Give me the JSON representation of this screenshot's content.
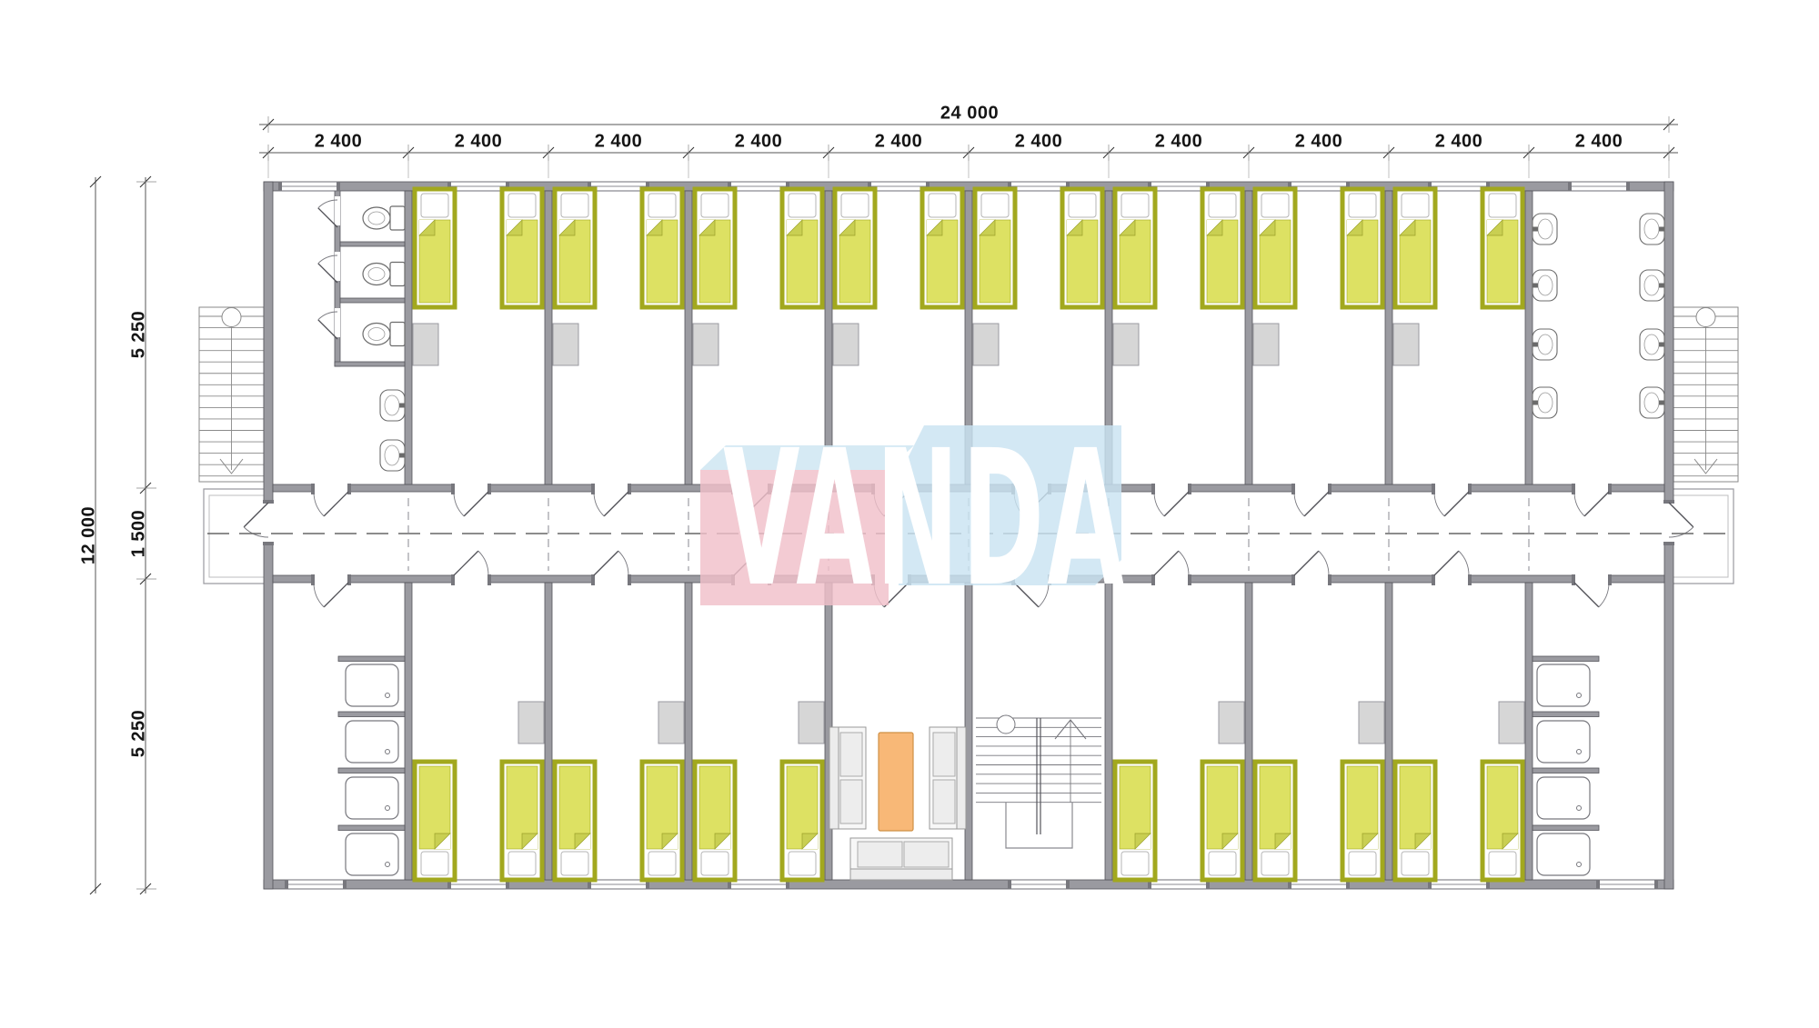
{
  "watermark": {
    "text": "VANDA"
  },
  "dimensions": {
    "top_total": "24 000",
    "top_segments": [
      "2 400",
      "2 400",
      "2 400",
      "2 400",
      "2 400",
      "2 400",
      "2 400",
      "2 400",
      "2 400",
      "2 400"
    ],
    "left_total": "12 000",
    "left_segments": [
      "5 250",
      "1 500",
      "5 250"
    ]
  },
  "plan": {
    "top_rooms": [
      "washroom-wc",
      "bedroom",
      "bedroom",
      "bedroom",
      "bedroom",
      "bedroom",
      "bedroom",
      "bedroom",
      "bedroom",
      "washroom-sinks"
    ],
    "bottom_rooms": [
      "shower-room",
      "bedroom",
      "bedroom",
      "bedroom",
      "lounge",
      "staircase",
      "bedroom",
      "bedroom",
      "bedroom",
      "shower-room"
    ],
    "icons": [
      "bed-symbol",
      "toilet-symbol",
      "sink-symbol",
      "shower-tray-symbol",
      "wardrobe-symbol",
      "window-symbol",
      "door-symbol",
      "armchair-symbol",
      "sofa-symbol",
      "coffee-table-symbol",
      "stair-arrow-icon"
    ]
  },
  "colors": {
    "wall": "#9a9aa0",
    "wall_outline": "#54545b",
    "bed_fill": "#dde163",
    "bed_frame": "#a2a81e",
    "bed_fold": "#c9cf52",
    "pillow": "#ffffff",
    "wardrobe": "#d6d6d6",
    "fixture_outline": "#6b6b6b",
    "table": "#f8b877",
    "table_outline": "#cf9045",
    "corridor_line": "#666666",
    "stair_line": "#8a8a8a",
    "dim_color": "#151515",
    "watermark_pink": "#f0bfc9",
    "watermark_blue": "#c9e3f1",
    "watermark_topface": "#cfe6f2",
    "watermark_letters": "#ffffff"
  }
}
